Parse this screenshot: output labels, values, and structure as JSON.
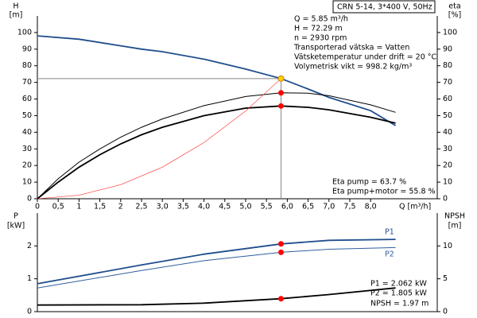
{
  "chart_data": [
    {
      "type": "line",
      "y_label": "H",
      "y_unit": "[m]",
      "y2_label": "eta",
      "y2_unit": "[%]",
      "x_label": "Q [m³/h]",
      "xlim": [
        0,
        9.6
      ],
      "ylim": [
        0,
        110
      ],
      "y2lim": [
        0,
        110
      ],
      "xticks": [
        0,
        {
          "value": 0.5,
          "label": "0,5"
        },
        1,
        {
          "value": 1.5,
          "label": "1,5"
        },
        2,
        {
          "value": 2.5,
          "label": "2,5"
        },
        {
          "value": 3,
          "label": "3,0"
        },
        {
          "value": 3.5,
          "label": "3,5"
        },
        {
          "value": 4,
          "label": "4,0"
        },
        {
          "value": 4.5,
          "label": "4,5"
        },
        {
          "value": 5,
          "label": "5,0"
        },
        {
          "value": 5.5,
          "label": "5,5"
        },
        {
          "value": 6,
          "label": "6,0"
        },
        {
          "value": 6.5,
          "label": "6,5"
        },
        {
          "value": 7,
          "label": "7,0"
        },
        {
          "value": 7.5,
          "label": "7,5"
        },
        {
          "value": 8,
          "label": "8,0"
        }
      ],
      "yticks": [
        0,
        10,
        20,
        30,
        40,
        50,
        60,
        70,
        80,
        90,
        100
      ],
      "y2ticks": [
        0,
        10,
        20,
        30,
        40,
        50,
        60,
        70,
        80,
        90,
        100
      ],
      "series": [
        {
          "color": "#1f4e8c",
          "x": [
            0,
            1,
            2,
            2.5,
            3,
            4,
            5,
            5.85,
            6.5,
            7,
            8,
            8.6
          ],
          "values": [
            98,
            96,
            92,
            90,
            88.5,
            84,
            78,
            72.29,
            66,
            61,
            53,
            44
          ]
        },
        {
          "color": "#000000",
          "axis": "y2",
          "x": [
            0,
            0.5,
            1,
            1.5,
            2,
            2.5,
            3,
            4,
            5,
            5.85,
            6.5,
            7,
            8,
            8.6
          ],
          "values": [
            0,
            12,
            22,
            30,
            37,
            43,
            48,
            56,
            61.5,
            63.7,
            63.5,
            62,
            56.5,
            52
          ]
        },
        {
          "color": "#000000",
          "axis": "y2",
          "x": [
            0,
            0.5,
            1,
            1.5,
            2,
            2.5,
            3,
            4,
            5,
            5.85,
            6.5,
            7,
            8,
            8.6
          ],
          "values": [
            0,
            10,
            19,
            26.5,
            33,
            38.5,
            43,
            50,
            54.5,
            55.8,
            55,
            53.5,
            49,
            45.5
          ]
        },
        {
          "color": "#ff3030",
          "x": [
            0,
            1,
            2,
            3,
            4,
            5,
            5.85
          ],
          "values": [
            0,
            2.1,
            8.45,
            19,
            33.8,
            52.8,
            72.29
          ]
        }
      ],
      "duty_point": {
        "x": 5.85,
        "points": [
          {
            "y": 72.29,
            "color": "#ffd200"
          },
          {
            "y": 63.7,
            "color": "#ff0000",
            "axis": "y2"
          },
          {
            "y": 55.8,
            "color": "#ff0000",
            "axis": "y2"
          }
        ]
      },
      "header": "CRN 5-14, 3*400 V, 50Hz",
      "annotations": [
        "Q = 5.85 m³/h",
        "H = 72.29 m",
        "n = 2930 rpm",
        "Transporterad vätska = Vatten",
        "Vätsketemperatur under drift = 20 °C",
        "Volymetrisk vikt = 998.2 kg/m³",
        "Eta pump = 63.7 %",
        "Eta pump+motor = 55.8 %"
      ]
    },
    {
      "type": "line",
      "y_label": "P",
      "y_unit": "[kW]",
      "y2_label": "NPSH",
      "y2_unit": "[m]",
      "xlim": [
        0,
        9.6
      ],
      "ylim": [
        0,
        3
      ],
      "y2lim": [
        0,
        15
      ],
      "yticks": [
        0,
        1,
        2
      ],
      "y2ticks": [
        0,
        5,
        10
      ],
      "series": [
        {
          "name": "P1",
          "color": "#1f4e8c",
          "x": [
            0,
            2.5,
            4,
            5.85,
            7,
            8.6
          ],
          "values": [
            0.85,
            1.42,
            1.75,
            2.062,
            2.17,
            2.2
          ]
        },
        {
          "name": "P2",
          "color": "#2f5f9f",
          "x": [
            0,
            2.5,
            4,
            5.85,
            7,
            8.6
          ],
          "values": [
            0.72,
            1.25,
            1.55,
            1.805,
            1.9,
            1.95
          ]
        },
        {
          "color": "#000000",
          "axis": "y2",
          "x": [
            0,
            2.5,
            4,
            5.85,
            7,
            8.6
          ],
          "values": [
            1.0,
            1.05,
            1.3,
            1.97,
            2.6,
            3.6
          ]
        }
      ],
      "duty_point": {
        "x": 5.85,
        "points": [
          {
            "y": 2.062,
            "color": "#ff0000"
          },
          {
            "y": 1.805,
            "color": "#ff0000"
          },
          {
            "y": 1.97,
            "color": "#ff0000",
            "axis": "y2"
          }
        ]
      },
      "annotations": [
        "P1 = 2.062 kW",
        "P2 = 1.805 kW",
        "NPSH = 1.97 m"
      ]
    }
  ]
}
